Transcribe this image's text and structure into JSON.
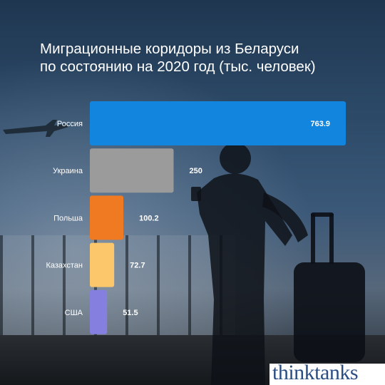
{
  "title": {
    "line1": "Миграционные коридоры из Беларуси",
    "line2": "по состоянию на 2020 год (тыс. человек)"
  },
  "brand": {
    "logo_text": "thinktanks"
  },
  "chart_data": {
    "type": "bar",
    "orientation": "horizontal",
    "categories": [
      "Россия",
      "Украина",
      "Польша",
      "Казахстан",
      "США"
    ],
    "values": [
      763.9,
      250,
      100.2,
      72.7,
      51.5
    ],
    "value_labels": [
      "763.9",
      "250",
      "100.2",
      "72.7",
      "51.5"
    ],
    "colors": [
      "#1286de",
      "#9b9b9b",
      "#f07a21",
      "#fbc76a",
      "#8580e0"
    ],
    "xlabel": "",
    "ylabel": "",
    "xlim": [
      0,
      763.9
    ],
    "grid": false,
    "legend": "none"
  }
}
